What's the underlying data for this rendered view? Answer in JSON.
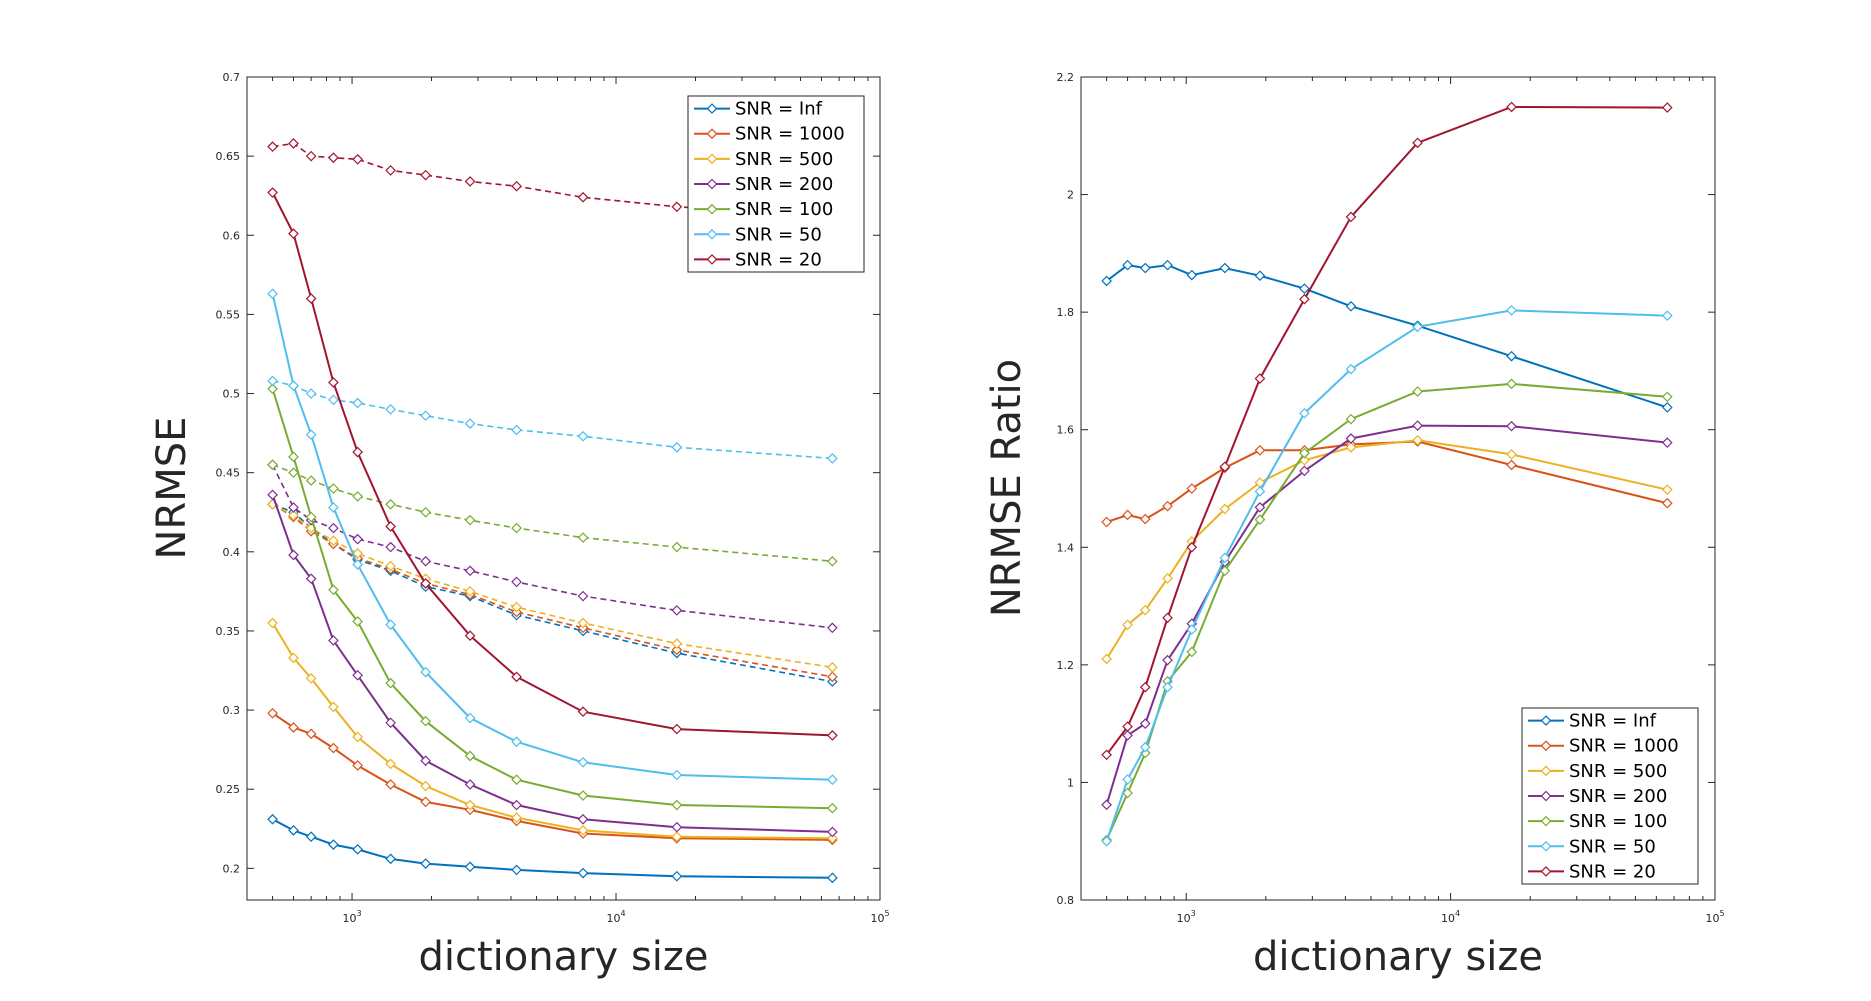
{
  "chart_data": [
    {
      "type": "line",
      "id": "left",
      "xlabel": "dictionary size",
      "ylabel": "NRMSE",
      "xscale": "log",
      "xlim": [
        400,
        100000
      ],
      "ylim": [
        0.18,
        0.7
      ],
      "xticks": [
        {
          "value": 1000,
          "base": "10",
          "exp": "3"
        },
        {
          "value": 10000,
          "base": "10",
          "exp": "4"
        },
        {
          "value": 100000,
          "base": "10",
          "exp": "5"
        }
      ],
      "yticks": [
        0.2,
        0.25,
        0.3,
        0.35,
        0.4,
        0.45,
        0.5,
        0.55,
        0.6,
        0.65,
        0.7
      ],
      "ytick_labels": [
        "0.2",
        "0.25",
        "0.3",
        "0.35",
        "0.4",
        "0.45",
        "0.5",
        "0.55",
        "0.6",
        "0.65",
        "0.7"
      ],
      "legend": "top-right",
      "x": [
        500,
        600,
        700,
        850,
        1050,
        1400,
        1900,
        2800,
        4200,
        7500,
        17000,
        66000
      ],
      "series": [
        {
          "name": "SNR = Inf",
          "color": "#0072BD",
          "solid": [
            0.231,
            0.224,
            0.22,
            0.215,
            0.212,
            0.206,
            0.203,
            0.201,
            0.199,
            0.197,
            0.195,
            0.194
          ],
          "dashed": [
            0.43,
            0.425,
            0.415,
            0.405,
            0.395,
            0.388,
            0.378,
            0.372,
            0.36,
            0.35,
            0.336,
            0.318
          ]
        },
        {
          "name": "SNR = 1000",
          "color": "#D95319",
          "solid": [
            0.298,
            0.289,
            0.285,
            0.276,
            0.265,
            0.253,
            0.242,
            0.237,
            0.23,
            0.222,
            0.219,
            0.218
          ],
          "dashed": [
            0.43,
            0.422,
            0.413,
            0.405,
            0.396,
            0.389,
            0.38,
            0.373,
            0.362,
            0.352,
            0.338,
            0.321
          ]
        },
        {
          "name": "SNR = 500",
          "color": "#EDB120",
          "solid": [
            0.355,
            0.333,
            0.32,
            0.302,
            0.283,
            0.266,
            0.252,
            0.24,
            0.232,
            0.224,
            0.22,
            0.219
          ],
          "dashed": [
            0.43,
            0.423,
            0.415,
            0.407,
            0.399,
            0.391,
            0.383,
            0.375,
            0.365,
            0.355,
            0.342,
            0.327
          ]
        },
        {
          "name": "SNR = 200",
          "color": "#7E2F8E",
          "solid": [
            0.436,
            0.398,
            0.383,
            0.344,
            0.322,
            0.292,
            0.268,
            0.253,
            0.24,
            0.231,
            0.226,
            0.223
          ],
          "dashed": [
            0.455,
            0.428,
            0.42,
            0.415,
            0.408,
            0.403,
            0.394,
            0.388,
            0.381,
            0.372,
            0.363,
            0.352
          ]
        },
        {
          "name": "SNR = 100",
          "color": "#77AC30",
          "solid": [
            0.503,
            0.46,
            0.422,
            0.376,
            0.356,
            0.317,
            0.293,
            0.271,
            0.256,
            0.246,
            0.24,
            0.238
          ],
          "dashed": [
            0.455,
            0.45,
            0.445,
            0.44,
            0.435,
            0.43,
            0.425,
            0.42,
            0.415,
            0.409,
            0.403,
            0.394
          ]
        },
        {
          "name": "SNR = 50",
          "color": "#4DBEEE",
          "solid": [
            0.563,
            0.505,
            0.474,
            0.428,
            0.392,
            0.354,
            0.324,
            0.295,
            0.28,
            0.267,
            0.259,
            0.256
          ],
          "dashed": [
            0.508,
            0.505,
            0.5,
            0.496,
            0.494,
            0.49,
            0.486,
            0.481,
            0.477,
            0.473,
            0.466,
            0.459
          ]
        },
        {
          "name": "SNR = 20",
          "color": "#A2142F",
          "solid": [
            0.627,
            0.601,
            0.56,
            0.507,
            0.463,
            0.416,
            0.38,
            0.347,
            0.321,
            0.299,
            0.288,
            0.284
          ],
          "dashed": [
            0.656,
            0.658,
            0.65,
            0.649,
            0.648,
            0.641,
            0.638,
            0.634,
            0.631,
            0.624,
            0.618,
            0.612
          ]
        }
      ]
    },
    {
      "type": "line",
      "id": "right",
      "xlabel": "dictionary size",
      "ylabel": "NRMSE Ratio",
      "xscale": "log",
      "xlim": [
        400,
        100000
      ],
      "ylim": [
        0.8,
        2.2
      ],
      "xticks": [
        {
          "value": 1000,
          "base": "10",
          "exp": "3"
        },
        {
          "value": 10000,
          "base": "10",
          "exp": "4"
        },
        {
          "value": 100000,
          "base": "10",
          "exp": "5"
        }
      ],
      "yticks": [
        0.8,
        1.0,
        1.2,
        1.4,
        1.6,
        1.8,
        2.0,
        2.2
      ],
      "ytick_labels": [
        "0.8",
        "1",
        "1.2",
        "1.4",
        "1.6",
        "1.8",
        "2",
        "2.2"
      ],
      "legend": "bottom-right",
      "x": [
        500,
        600,
        700,
        850,
        1050,
        1400,
        1900,
        2800,
        4200,
        7500,
        17000,
        66000
      ],
      "series": [
        {
          "name": "SNR = Inf",
          "color": "#0072BD",
          "values": [
            1.853,
            1.88,
            1.875,
            1.88,
            1.863,
            1.875,
            1.862,
            1.84,
            1.81,
            1.777,
            1.725,
            1.638
          ]
        },
        {
          "name": "SNR = 1000",
          "color": "#D95319",
          "values": [
            1.443,
            1.455,
            1.448,
            1.47,
            1.5,
            1.535,
            1.565,
            1.565,
            1.575,
            1.58,
            1.54,
            1.475
          ]
        },
        {
          "name": "SNR = 500",
          "color": "#EDB120",
          "values": [
            1.21,
            1.268,
            1.293,
            1.347,
            1.41,
            1.465,
            1.51,
            1.548,
            1.57,
            1.582,
            1.558,
            1.498
          ]
        },
        {
          "name": "SNR = 200",
          "color": "#7E2F8E",
          "values": [
            0.962,
            1.08,
            1.1,
            1.208,
            1.27,
            1.375,
            1.468,
            1.53,
            1.585,
            1.607,
            1.606,
            1.578
          ]
        },
        {
          "name": "SNR = 100",
          "color": "#77AC30",
          "values": [
            0.902,
            0.982,
            1.05,
            1.172,
            1.222,
            1.36,
            1.447,
            1.56,
            1.618,
            1.665,
            1.678,
            1.656
          ]
        },
        {
          "name": "SNR = 50",
          "color": "#4DBEEE",
          "values": [
            0.9,
            1.005,
            1.06,
            1.162,
            1.26,
            1.382,
            1.495,
            1.628,
            1.703,
            1.775,
            1.803,
            1.794
          ]
        },
        {
          "name": "SNR = 20",
          "color": "#A2142F",
          "values": [
            1.047,
            1.095,
            1.162,
            1.28,
            1.4,
            1.537,
            1.687,
            1.822,
            1.962,
            2.088,
            2.149,
            2.148
          ]
        }
      ]
    }
  ]
}
